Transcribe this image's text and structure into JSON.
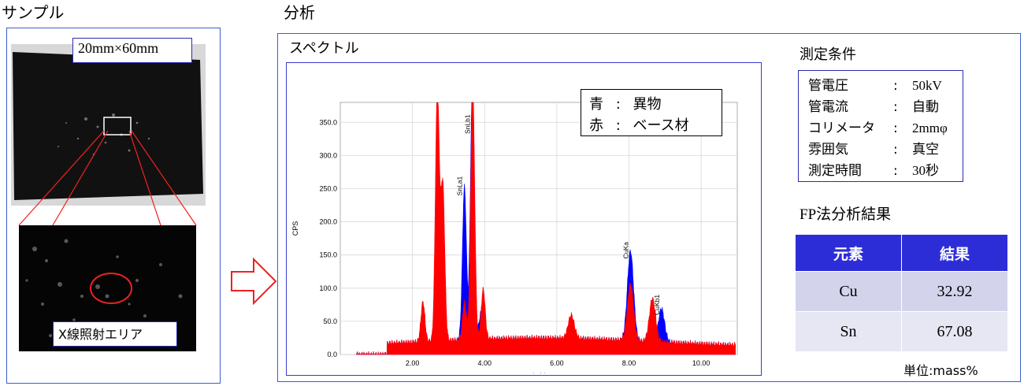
{
  "sample": {
    "heading": "サンプル",
    "size_label": "20mm×60mm",
    "area_label": "X線照射エリア"
  },
  "analysis": {
    "heading": "分析",
    "spectrum_title": "スペクトル",
    "legend": [
      {
        "color_name": "青",
        "sep": ":",
        "meaning": "異物"
      },
      {
        "color_name": "赤",
        "sep": ":",
        "meaning": "ベース材"
      }
    ],
    "conditions_title": "測定条件",
    "conditions": [
      {
        "label": "管電圧",
        "sep": ":",
        "value": "50kV"
      },
      {
        "label": "管電流",
        "sep": ":",
        "value": "自動"
      },
      {
        "label": "コリメータ",
        "sep": ":",
        "value": "2mmφ"
      },
      {
        "label": "雰囲気",
        "sep": ":",
        "value": "真空"
      },
      {
        "label": "測定時間",
        "sep": ":",
        "value": "30秒"
      }
    ],
    "fp_title": "FP法分析結果",
    "table_headers": [
      "元素",
      "結果"
    ],
    "table_rows": [
      {
        "element": "Cu",
        "result": "32.92"
      },
      {
        "element": "Sn",
        "result": "67.08"
      }
    ],
    "unit_label": "単位:mass%"
  },
  "chart_data": {
    "type": "area",
    "xlabel": "keV",
    "ylabel": "CPS",
    "xlim": [
      0.0,
      11.0
    ],
    "ylim": [
      0,
      380
    ],
    "x_ticks": [
      "2.00",
      "4.00",
      "6.00",
      "8.00",
      "10.00"
    ],
    "y_ticks": [
      "0.0",
      "50.0",
      "100.0",
      "150.0",
      "200.0",
      "250.0",
      "300.0",
      "350.0"
    ],
    "grid": true,
    "series": [
      {
        "name": "異物",
        "color": "#0000ff",
        "peaks": [
          {
            "keV": 3.44,
            "cps": 230,
            "label": "SnLa1"
          },
          {
            "keV": 3.66,
            "cps": 380,
            "label": "SnLb1"
          },
          {
            "keV": 3.9,
            "cps": 40,
            "label": ""
          },
          {
            "keV": 8.04,
            "cps": 135,
            "label": "CuKa"
          },
          {
            "keV": 8.9,
            "cps": 50,
            "label": "CuKb1"
          }
        ]
      },
      {
        "name": "ベース材",
        "color": "#ff0000",
        "peaks": [
          {
            "keV": 2.29,
            "cps": 60,
            "label": ""
          },
          {
            "keV": 2.69,
            "cps": 380,
            "label": ""
          },
          {
            "keV": 2.84,
            "cps": 235,
            "label": ""
          },
          {
            "keV": 3.44,
            "cps": 55,
            "label": ""
          },
          {
            "keV": 3.67,
            "cps": 380,
            "label": ""
          },
          {
            "keV": 3.96,
            "cps": 75,
            "label": ""
          },
          {
            "keV": 6.4,
            "cps": 35,
            "label": ""
          },
          {
            "keV": 8.04,
            "cps": 85,
            "label": ""
          },
          {
            "keV": 8.65,
            "cps": 65,
            "label": ""
          }
        ]
      }
    ]
  },
  "colors": {
    "panel_border": "#3a5fcd",
    "arrow": "#ee2222",
    "table_header_bg": "#2d2dd8"
  }
}
